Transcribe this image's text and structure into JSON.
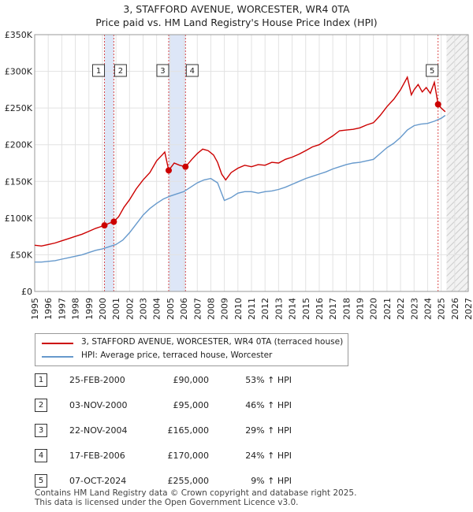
{
  "chart_data": {
    "type": "line",
    "title": "3, STAFFORD AVENUE, WORCESTER, WR4 0TA",
    "subtitle": "Price paid vs. HM Land Registry's House Price Index (HPI)",
    "xlim": [
      1995,
      2027
    ],
    "ylim": [
      0,
      350000
    ],
    "yticks": [
      0,
      50000,
      100000,
      150000,
      200000,
      250000,
      300000,
      350000
    ],
    "ytick_labels": [
      "£0",
      "£50K",
      "£100K",
      "£150K",
      "£200K",
      "£250K",
      "£300K",
      "£350K"
    ],
    "xticks": [
      1995,
      1996,
      1997,
      1998,
      1999,
      2000,
      2001,
      2002,
      2003,
      2004,
      2005,
      2006,
      2007,
      2008,
      2009,
      2010,
      2011,
      2012,
      2013,
      2014,
      2015,
      2016,
      2017,
      2018,
      2019,
      2020,
      2021,
      2022,
      2023,
      2024,
      2025,
      2026,
      2027
    ],
    "future_start": 2025.4,
    "series": [
      {
        "name": "3, STAFFORD AVENUE, WORCESTER, WR4 0TA (terraced house)",
        "color": "#cc0000",
        "x": [
          1995.0,
          1995.5,
          1996.0,
          1996.5,
          1997.0,
          1997.5,
          1998.0,
          1998.5,
          1999.0,
          1999.5,
          2000.15,
          2000.5,
          2000.84,
          2001.2,
          2001.6,
          2002.0,
          2002.5,
          2003.0,
          2003.5,
          2004.0,
          2004.4,
          2004.6,
          2004.89,
          2005.3,
          2005.7,
          2006.13,
          2006.6,
          2007.0,
          2007.4,
          2007.8,
          2008.2,
          2008.5,
          2008.8,
          2009.1,
          2009.5,
          2010.0,
          2010.5,
          2011.0,
          2011.5,
          2012.0,
          2012.5,
          2013.0,
          2013.5,
          2014.0,
          2014.5,
          2015.0,
          2015.5,
          2016.0,
          2016.5,
          2017.0,
          2017.5,
          2018.0,
          2018.5,
          2019.0,
          2019.5,
          2020.0,
          2020.5,
          2021.0,
          2021.5,
          2022.0,
          2022.5,
          2022.8,
          2023.0,
          2023.3,
          2023.6,
          2023.9,
          2024.2,
          2024.5,
          2024.77,
          2025.0,
          2025.3
        ],
        "values": [
          63000,
          62000,
          64000,
          66000,
          69000,
          72000,
          75000,
          78000,
          82000,
          86000,
          90000,
          93000,
          95000,
          102000,
          115000,
          125000,
          140000,
          152000,
          162000,
          178000,
          186000,
          190000,
          165000,
          175000,
          172000,
          170000,
          180000,
          188000,
          194000,
          192000,
          186000,
          176000,
          160000,
          152000,
          162000,
          168000,
          172000,
          170000,
          173000,
          172000,
          176000,
          175000,
          180000,
          183000,
          187000,
          192000,
          197000,
          200000,
          206000,
          212000,
          219000,
          220000,
          221000,
          223000,
          227000,
          230000,
          240000,
          252000,
          262000,
          275000,
          292000,
          268000,
          275000,
          282000,
          272000,
          278000,
          270000,
          285000,
          255000,
          250000,
          245000
        ]
      },
      {
        "name": "HPI: Average price, terraced house, Worcester",
        "color": "#6699cc",
        "x": [
          1995.0,
          1995.5,
          1996.0,
          1996.5,
          1997.0,
          1997.5,
          1998.0,
          1998.5,
          1999.0,
          1999.5,
          2000.0,
          2000.5,
          2001.0,
          2001.5,
          2002.0,
          2002.5,
          2003.0,
          2003.5,
          2004.0,
          2004.5,
          2005.0,
          2005.5,
          2006.0,
          2006.5,
          2007.0,
          2007.5,
          2008.0,
          2008.5,
          2009.0,
          2009.5,
          2010.0,
          2010.5,
          2011.0,
          2011.5,
          2012.0,
          2012.5,
          2013.0,
          2013.5,
          2014.0,
          2014.5,
          2015.0,
          2015.5,
          2016.0,
          2016.5,
          2017.0,
          2017.5,
          2018.0,
          2018.5,
          2019.0,
          2019.5,
          2020.0,
          2020.5,
          2021.0,
          2021.5,
          2022.0,
          2022.5,
          2023.0,
          2023.5,
          2024.0,
          2024.5,
          2025.0,
          2025.3
        ],
        "values": [
          40000,
          40000,
          41000,
          42000,
          44000,
          46000,
          48000,
          50000,
          53000,
          56000,
          58000,
          61000,
          64000,
          70000,
          80000,
          92000,
          104000,
          113000,
          120000,
          126000,
          130000,
          133000,
          136000,
          142000,
          148000,
          152000,
          154000,
          148000,
          124000,
          128000,
          134000,
          136000,
          136000,
          134000,
          136000,
          137000,
          139000,
          142000,
          146000,
          150000,
          154000,
          157000,
          160000,
          163000,
          167000,
          170000,
          173000,
          175000,
          176000,
          178000,
          180000,
          188000,
          196000,
          202000,
          210000,
          220000,
          226000,
          228000,
          229000,
          232000,
          236000,
          240000
        ]
      }
    ],
    "sales": [
      {
        "label": "1",
        "x": 2000.15,
        "value": 90000
      },
      {
        "label": "2",
        "x": 2000.84,
        "value": 95000
      },
      {
        "label": "3",
        "x": 2004.89,
        "value": 165000
      },
      {
        "label": "4",
        "x": 2006.13,
        "value": 170000
      },
      {
        "label": "5",
        "x": 2024.77,
        "value": 255000
      }
    ]
  },
  "legend": {
    "series1": "3, STAFFORD AVENUE, WORCESTER, WR4 0TA (terraced house)",
    "series2": "HPI: Average price, terraced house, Worcester"
  },
  "table": [
    {
      "num": "1",
      "date": "25-FEB-2000",
      "price": "£90,000",
      "hpi": "53% ↑ HPI"
    },
    {
      "num": "2",
      "date": "03-NOV-2000",
      "price": "£95,000",
      "hpi": "46% ↑ HPI"
    },
    {
      "num": "3",
      "date": "22-NOV-2004",
      "price": "£165,000",
      "hpi": "29% ↑ HPI"
    },
    {
      "num": "4",
      "date": "17-FEB-2006",
      "price": "£170,000",
      "hpi": "24% ↑ HPI"
    },
    {
      "num": "5",
      "date": "07-OCT-2024",
      "price": "£255,000",
      "hpi": "9% ↑ HPI"
    }
  ],
  "footer": {
    "line1": "Contains HM Land Registry data © Crown copyright and database right 2025.",
    "line2": "This data is licensed under the Open Government Licence v3.0."
  },
  "colors": {
    "red": "#cc0000",
    "blue": "#6699cc",
    "band": "#dde6f7"
  }
}
